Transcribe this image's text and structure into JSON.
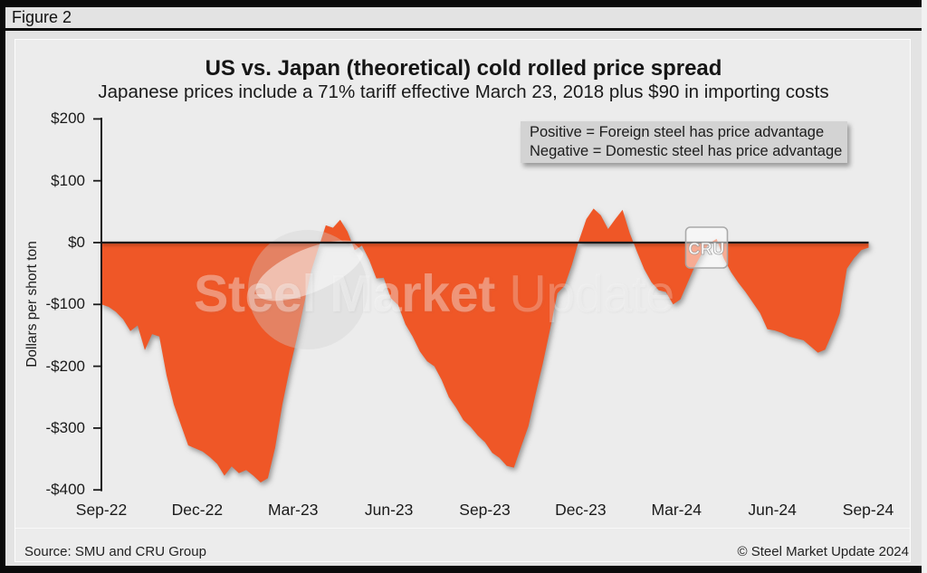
{
  "figure_label": "Figure 2",
  "title": "US vs. Japan (theoretical) cold rolled price spread",
  "subtitle": "Japanese prices include a 71% tariff effective March 23, 2018 plus $90 in importing costs",
  "legend": {
    "line1": "Positive = Foreign steel has price advantage",
    "line2": "Negative = Domestic steel has price advantage"
  },
  "watermark": {
    "bold": "Steel Market",
    "light": " Update",
    "logo_badge": "CRU"
  },
  "footer": {
    "source": "Source: SMU and CRU Group",
    "copyright": "© Steel Market Update 2024"
  },
  "colors": {
    "area": "#ef5727",
    "zero_line": "#1a1a1a",
    "page_bg": "#e3e3e3",
    "panel_bg": "#ececec",
    "legend_bg": "#d3d3d3",
    "bar": "#0b0b0b"
  },
  "chart_data": {
    "type": "area",
    "title": "US vs. Japan (theoretical) cold rolled price spread",
    "ylabel": "Dollars per short ton",
    "ylim": [
      -400,
      200
    ],
    "y_tick_values": [
      200,
      100,
      0,
      -100,
      -200,
      -300,
      -400
    ],
    "y_tick_labels": [
      "$200",
      "$100",
      "$0",
      "-$100",
      "-$200",
      "-$300",
      "-$400"
    ],
    "x_tick_labels": [
      "Sep-22",
      "Dec-22",
      "Mar-23",
      "Jun-23",
      "Sep-23",
      "Dec-23",
      "Mar-24",
      "Jun-24",
      "Sep-24"
    ],
    "cadence": "weekly",
    "period_start": "Sep-22",
    "period_end": "Sep-24",
    "baseline": 0,
    "series": [
      {
        "name": "US minus Japan cold rolled price spread ($/short ton)",
        "values": [
          -100,
          -104,
          -112,
          -124,
          -143,
          -134,
          -174,
          -148,
          -152,
          -215,
          -262,
          -295,
          -328,
          -333,
          -338,
          -347,
          -358,
          -377,
          -362,
          -373,
          -368,
          -377,
          -388,
          -381,
          -332,
          -262,
          -205,
          -155,
          -100,
          -45,
          -8,
          28,
          24,
          37,
          18,
          -12,
          -5,
          -28,
          -58,
          -57,
          -90,
          -101,
          -132,
          -152,
          -176,
          -192,
          -200,
          -222,
          -250,
          -267,
          -287,
          -298,
          -312,
          -323,
          -340,
          -348,
          -361,
          -364,
          -330,
          -297,
          -245,
          -195,
          -140,
          -82,
          -70,
          -36,
          4,
          38,
          55,
          44,
          22,
          38,
          53,
          15,
          -15,
          -43,
          -64,
          -77,
          -80,
          -100,
          -92,
          -65,
          -38,
          -17,
          -1,
          6,
          -26,
          -48,
          -65,
          -80,
          -97,
          -114,
          -140,
          -142,
          -146,
          -152,
          -155,
          -158,
          -168,
          -178,
          -173,
          -146,
          -115,
          -42,
          -25,
          -12,
          -8
        ]
      }
    ],
    "legend_note": [
      "Positive = Foreign steel has price advantage",
      "Negative = Domestic steel has price advantage"
    ]
  }
}
